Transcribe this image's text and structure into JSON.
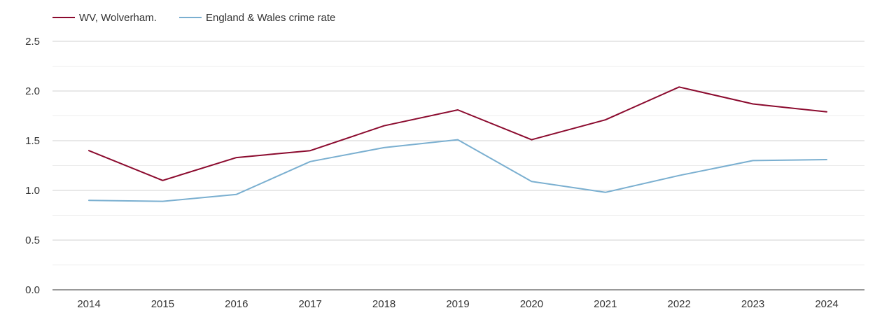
{
  "chart_data": {
    "type": "line",
    "title": "",
    "xlabel": "",
    "ylabel": "",
    "x": [
      "2014",
      "2015",
      "2016",
      "2017",
      "2018",
      "2019",
      "2020",
      "2021",
      "2022",
      "2023",
      "2024"
    ],
    "ylim": [
      0,
      2.5
    ],
    "yticks": [
      "0.0",
      "0.5",
      "1.0",
      "1.5",
      "2.0",
      "2.5"
    ],
    "grid": true,
    "legend_position": "top-left",
    "series": [
      {
        "name": "WV, Wolverham.",
        "color": "#8b0a2e",
        "values": [
          1.4,
          1.1,
          1.33,
          1.4,
          1.65,
          1.81,
          1.51,
          1.71,
          2.04,
          1.87,
          1.79
        ]
      },
      {
        "name": "England & Wales crime rate",
        "color": "#7aafd0",
        "values": [
          0.9,
          0.89,
          0.96,
          1.29,
          1.43,
          1.51,
          1.09,
          0.98,
          1.15,
          1.3,
          1.31
        ]
      }
    ]
  }
}
